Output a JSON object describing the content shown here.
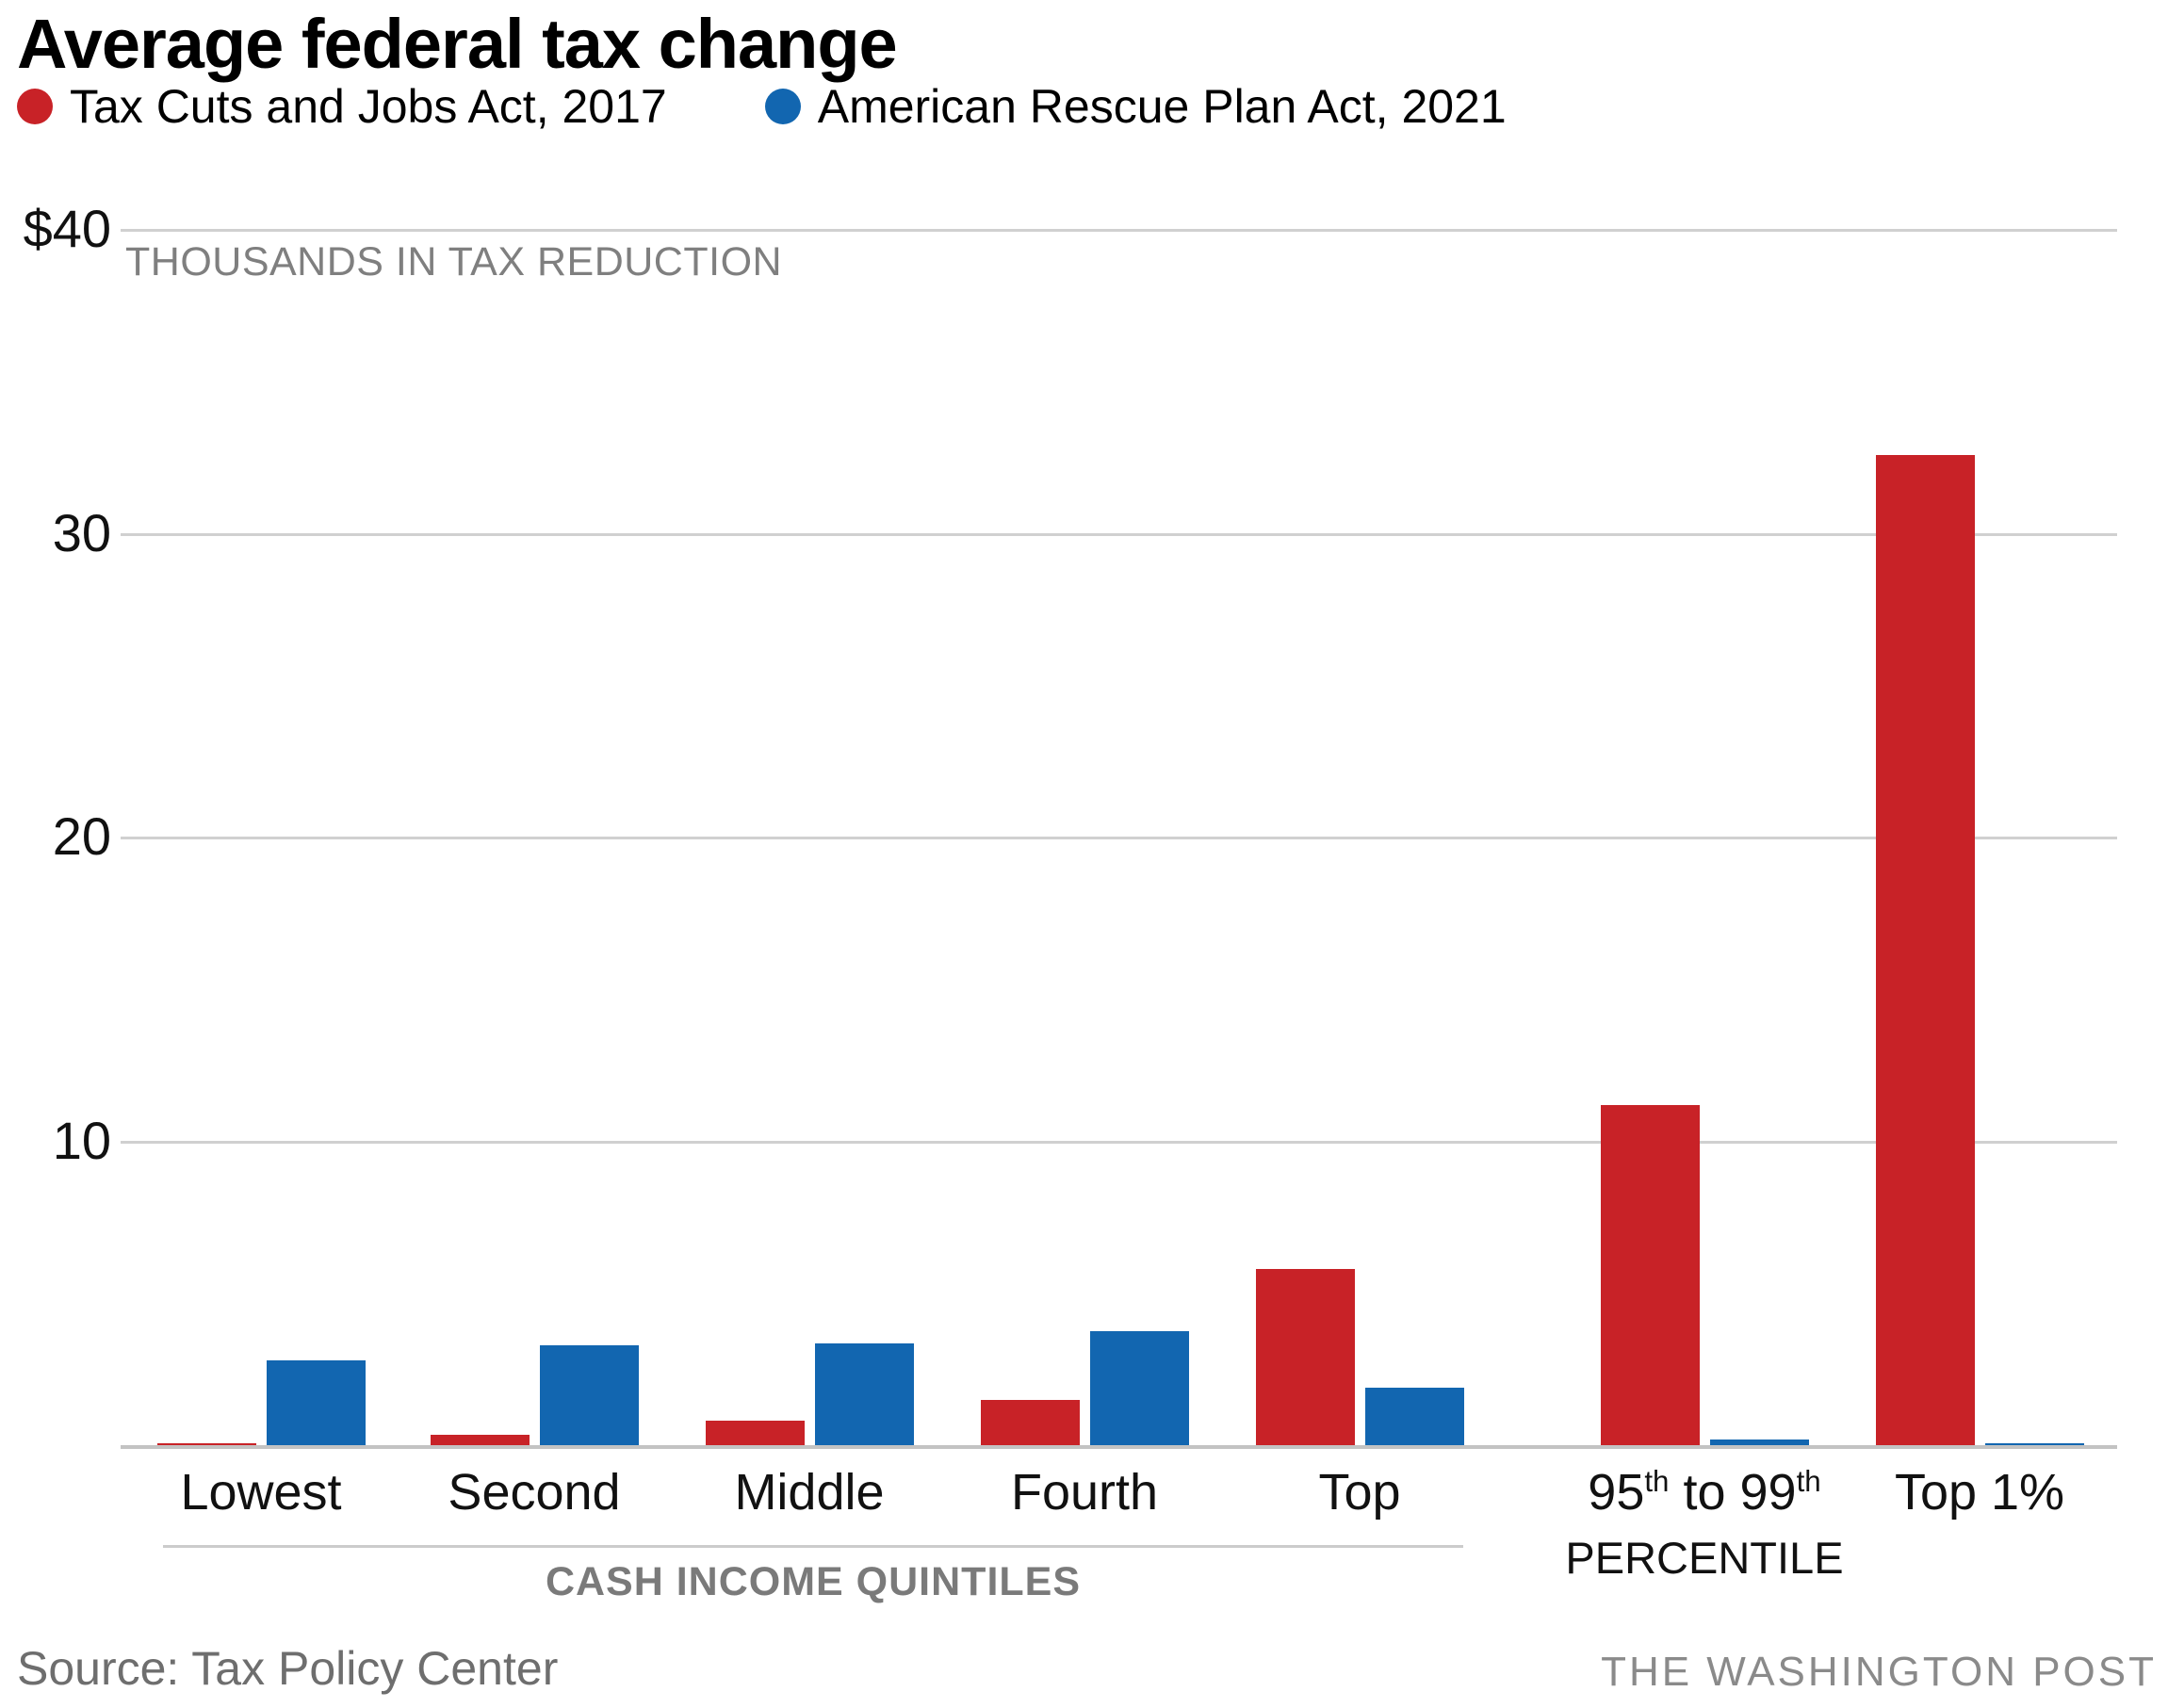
{
  "header": {
    "title": "Average federal tax change",
    "legend": [
      {
        "name": "tcja",
        "label": "Tax Cuts and Jobs Act, 2017",
        "color": "#c82227"
      },
      {
        "name": "arpa",
        "label": "American Rescue Plan Act, 2021",
        "color": "#1266b0"
      }
    ]
  },
  "axis": {
    "unit_label": "THOUSANDS IN TAX REDUCTION",
    "group_axis_label": "CASH INCOME QUINTILES"
  },
  "chart_data": {
    "type": "bar",
    "title": "Average federal tax change",
    "ylabel": "THOUSANDS IN TAX REDUCTION",
    "ylim": [
      0,
      40
    ],
    "grid": "horizontal",
    "legend_position": "top",
    "yticks": [
      {
        "value": 40,
        "label": "$40"
      },
      {
        "value": 30,
        "label": "30"
      },
      {
        "value": 20,
        "label": "20"
      },
      {
        "value": 10,
        "label": "10"
      }
    ],
    "categories": [
      {
        "key": "lowest",
        "label": "Lowest"
      },
      {
        "key": "second",
        "label": "Second"
      },
      {
        "key": "middle",
        "label": "Middle"
      },
      {
        "key": "fourth",
        "label": "Fourth"
      },
      {
        "key": "top",
        "label": "Top"
      },
      {
        "key": "95th-99th",
        "label": "95th to 99th",
        "label2": "PERCENTILE"
      },
      {
        "key": "top-1pct",
        "label": "Top 1%"
      }
    ],
    "series": [
      {
        "name": "Tax Cuts and Jobs Act, 2017",
        "key": "tcja",
        "color": "#c82227",
        "values": [
          0.07,
          0.33,
          0.8,
          1.5,
          5.8,
          11.2,
          32.6
        ]
      },
      {
        "name": "American Rescue Plan Act, 2021",
        "key": "arpa",
        "color": "#1266b0",
        "values": [
          2.8,
          3.3,
          3.35,
          3.75,
          1.9,
          0.2,
          0.05
        ]
      }
    ],
    "x_axis_group_note": "CASH INCOME QUINTILES",
    "quintile_group_indices": [
      0,
      1,
      2,
      3,
      4
    ]
  },
  "footer": {
    "source": "Source: Tax Policy Center",
    "credit": "THE WASHINGTON POST"
  }
}
